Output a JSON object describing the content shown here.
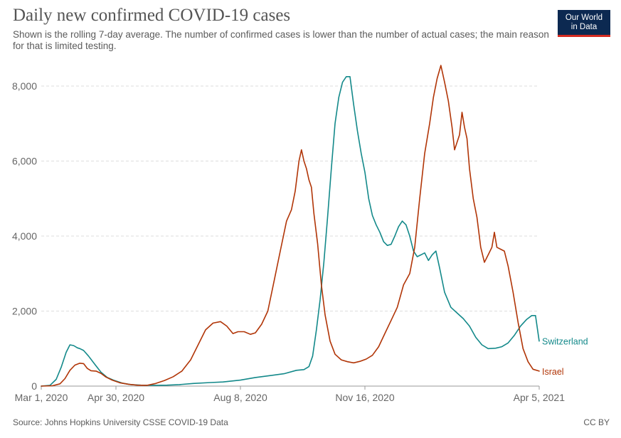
{
  "title": "Daily new confirmed COVID-19 cases",
  "subtitle": "Shown is the rolling 7-day average. The number of confirmed cases is lower than the number of actual cases; the main reason for that is limited testing.",
  "logo": {
    "line1": "Our World",
    "line2": "in Data",
    "bg_color": "#0c2951",
    "accent_color": "#d42b21"
  },
  "source": "Source: Johns Hopkins University CSSE COVID-19 Data",
  "license": "CC BY",
  "chart_data": {
    "type": "line",
    "title": "Daily new confirmed COVID-19 cases",
    "x_axis": {
      "type": "date",
      "range": [
        "2020-03-01",
        "2021-04-05"
      ],
      "tick_labels": [
        {
          "date": "2020-03-01",
          "label": "Mar 1, 2020"
        },
        {
          "date": "2020-04-30",
          "label": "Apr 30, 2020"
        },
        {
          "date": "2020-08-08",
          "label": "Aug 8, 2020"
        },
        {
          "date": "2020-11-16",
          "label": "Nov 16, 2020"
        },
        {
          "date": "2021-04-05",
          "label": "Apr 5, 2021"
        }
      ]
    },
    "y_axis": {
      "range": [
        0,
        8000
      ],
      "ticks": [
        {
          "value": 0,
          "label": "0"
        },
        {
          "value": 2000,
          "label": "2,000"
        },
        {
          "value": 4000,
          "label": "4,000"
        },
        {
          "value": 6000,
          "label": "6,000"
        },
        {
          "value": 8000,
          "label": "8,000"
        }
      ]
    },
    "grid": "horizontal dashed",
    "legend": "labels at line ends, right",
    "series": [
      {
        "name": "Switzerland",
        "color": "#13898a",
        "points": [
          [
            "2020-03-01",
            0
          ],
          [
            "2020-03-08",
            20
          ],
          [
            "2020-03-13",
            180
          ],
          [
            "2020-03-17",
            500
          ],
          [
            "2020-03-21",
            900
          ],
          [
            "2020-03-24",
            1100
          ],
          [
            "2020-03-27",
            1080
          ],
          [
            "2020-03-30",
            1020
          ],
          [
            "2020-04-01",
            1000
          ],
          [
            "2020-04-04",
            950
          ],
          [
            "2020-04-08",
            800
          ],
          [
            "2020-04-13",
            580
          ],
          [
            "2020-04-18",
            370
          ],
          [
            "2020-04-23",
            230
          ],
          [
            "2020-04-28",
            160
          ],
          [
            "2020-05-05",
            80
          ],
          [
            "2020-05-12",
            40
          ],
          [
            "2020-05-20",
            25
          ],
          [
            "2020-06-01",
            20
          ],
          [
            "2020-06-10",
            25
          ],
          [
            "2020-06-20",
            40
          ],
          [
            "2020-07-01",
            70
          ],
          [
            "2020-07-15",
            95
          ],
          [
            "2020-07-25",
            110
          ],
          [
            "2020-08-08",
            160
          ],
          [
            "2020-08-20",
            230
          ],
          [
            "2020-09-01",
            280
          ],
          [
            "2020-09-12",
            330
          ],
          [
            "2020-09-22",
            420
          ],
          [
            "2020-09-28",
            440
          ],
          [
            "2020-10-02",
            520
          ],
          [
            "2020-10-05",
            800
          ],
          [
            "2020-10-08",
            1500
          ],
          [
            "2020-10-11",
            2300
          ],
          [
            "2020-10-14",
            3300
          ],
          [
            "2020-10-17",
            4500
          ],
          [
            "2020-10-20",
            5800
          ],
          [
            "2020-10-23",
            7000
          ],
          [
            "2020-10-26",
            7700
          ],
          [
            "2020-10-29",
            8100
          ],
          [
            "2020-11-01",
            8250
          ],
          [
            "2020-11-04",
            8250
          ],
          [
            "2020-11-07",
            7500
          ],
          [
            "2020-11-10",
            6800
          ],
          [
            "2020-11-13",
            6200
          ],
          [
            "2020-11-16",
            5700
          ],
          [
            "2020-11-19",
            5000
          ],
          [
            "2020-11-22",
            4550
          ],
          [
            "2020-11-25",
            4300
          ],
          [
            "2020-11-28",
            4100
          ],
          [
            "2020-12-01",
            3850
          ],
          [
            "2020-12-04",
            3750
          ],
          [
            "2020-12-07",
            3780
          ],
          [
            "2020-12-10",
            4000
          ],
          [
            "2020-12-13",
            4250
          ],
          [
            "2020-12-16",
            4400
          ],
          [
            "2020-12-19",
            4300
          ],
          [
            "2020-12-22",
            4000
          ],
          [
            "2020-12-25",
            3600
          ],
          [
            "2020-12-28",
            3450
          ],
          [
            "2020-12-31",
            3500
          ],
          [
            "2021-01-03",
            3550
          ],
          [
            "2021-01-06",
            3350
          ],
          [
            "2021-01-09",
            3500
          ],
          [
            "2021-01-12",
            3600
          ],
          [
            "2021-01-15",
            3150
          ],
          [
            "2021-01-19",
            2500
          ],
          [
            "2021-01-24",
            2100
          ],
          [
            "2021-01-29",
            1950
          ],
          [
            "2021-02-03",
            1800
          ],
          [
            "2021-02-08",
            1600
          ],
          [
            "2021-02-13",
            1300
          ],
          [
            "2021-02-18",
            1100
          ],
          [
            "2021-02-23",
            1000
          ],
          [
            "2021-03-01",
            1010
          ],
          [
            "2021-03-06",
            1050
          ],
          [
            "2021-03-11",
            1150
          ],
          [
            "2021-03-16",
            1350
          ],
          [
            "2021-03-21",
            1600
          ],
          [
            "2021-03-26",
            1780
          ],
          [
            "2021-03-30",
            1880
          ],
          [
            "2021-04-02",
            1880
          ],
          [
            "2021-04-05",
            1200
          ]
        ]
      },
      {
        "name": "Israel",
        "color": "#b13507",
        "points": [
          [
            "2020-03-01",
            0
          ],
          [
            "2020-03-10",
            10
          ],
          [
            "2020-03-16",
            60
          ],
          [
            "2020-03-20",
            200
          ],
          [
            "2020-03-24",
            420
          ],
          [
            "2020-03-28",
            560
          ],
          [
            "2020-04-01",
            610
          ],
          [
            "2020-04-04",
            600
          ],
          [
            "2020-04-07",
            470
          ],
          [
            "2020-04-10",
            410
          ],
          [
            "2020-04-14",
            400
          ],
          [
            "2020-04-18",
            340
          ],
          [
            "2020-04-22",
            240
          ],
          [
            "2020-04-27",
            160
          ],
          [
            "2020-05-03",
            90
          ],
          [
            "2020-05-10",
            50
          ],
          [
            "2020-05-17",
            25
          ],
          [
            "2020-05-25",
            20
          ],
          [
            "2020-06-01",
            70
          ],
          [
            "2020-06-08",
            150
          ],
          [
            "2020-06-15",
            250
          ],
          [
            "2020-06-22",
            400
          ],
          [
            "2020-06-29",
            700
          ],
          [
            "2020-07-05",
            1100
          ],
          [
            "2020-07-11",
            1500
          ],
          [
            "2020-07-17",
            1680
          ],
          [
            "2020-07-23",
            1720
          ],
          [
            "2020-07-28",
            1600
          ],
          [
            "2020-08-02",
            1400
          ],
          [
            "2020-08-06",
            1450
          ],
          [
            "2020-08-11",
            1450
          ],
          [
            "2020-08-16",
            1380
          ],
          [
            "2020-08-20",
            1420
          ],
          [
            "2020-08-25",
            1650
          ],
          [
            "2020-08-30",
            2000
          ],
          [
            "2020-09-04",
            2800
          ],
          [
            "2020-09-09",
            3600
          ],
          [
            "2020-09-14",
            4400
          ],
          [
            "2020-09-18",
            4700
          ],
          [
            "2020-09-21",
            5200
          ],
          [
            "2020-09-24",
            6000
          ],
          [
            "2020-09-26",
            6300
          ],
          [
            "2020-09-28",
            6000
          ],
          [
            "2020-09-30",
            5800
          ],
          [
            "2020-10-02",
            5500
          ],
          [
            "2020-10-04",
            5300
          ],
          [
            "2020-10-06",
            4600
          ],
          [
            "2020-10-09",
            3800
          ],
          [
            "2020-10-12",
            2700
          ],
          [
            "2020-10-15",
            1900
          ],
          [
            "2020-10-19",
            1200
          ],
          [
            "2020-10-23",
            850
          ],
          [
            "2020-10-28",
            700
          ],
          [
            "2020-11-02",
            650
          ],
          [
            "2020-11-07",
            620
          ],
          [
            "2020-11-12",
            660
          ],
          [
            "2020-11-17",
            720
          ],
          [
            "2020-11-22",
            820
          ],
          [
            "2020-11-27",
            1050
          ],
          [
            "2020-12-02",
            1400
          ],
          [
            "2020-12-07",
            1750
          ],
          [
            "2020-12-12",
            2100
          ],
          [
            "2020-12-17",
            2700
          ],
          [
            "2020-12-22",
            3000
          ],
          [
            "2020-12-26",
            3700
          ],
          [
            "2020-12-30",
            5000
          ],
          [
            "2021-01-03",
            6200
          ],
          [
            "2021-01-07",
            7000
          ],
          [
            "2021-01-10",
            7700
          ],
          [
            "2021-01-13",
            8200
          ],
          [
            "2021-01-16",
            8550
          ],
          [
            "2021-01-19",
            8100
          ],
          [
            "2021-01-22",
            7600
          ],
          [
            "2021-01-25",
            6900
          ],
          [
            "2021-01-27",
            6300
          ],
          [
            "2021-01-29",
            6500
          ],
          [
            "2021-01-31",
            6700
          ],
          [
            "2021-02-02",
            7300
          ],
          [
            "2021-02-04",
            6900
          ],
          [
            "2021-02-06",
            6600
          ],
          [
            "2021-02-08",
            5800
          ],
          [
            "2021-02-11",
            5000
          ],
          [
            "2021-02-14",
            4500
          ],
          [
            "2021-02-17",
            3700
          ],
          [
            "2021-02-20",
            3300
          ],
          [
            "2021-02-23",
            3500
          ],
          [
            "2021-02-26",
            3700
          ],
          [
            "2021-02-28",
            4100
          ],
          [
            "2021-03-02",
            3700
          ],
          [
            "2021-03-05",
            3650
          ],
          [
            "2021-03-08",
            3600
          ],
          [
            "2021-03-11",
            3200
          ],
          [
            "2021-03-15",
            2500
          ],
          [
            "2021-03-19",
            1700
          ],
          [
            "2021-03-23",
            1000
          ],
          [
            "2021-03-27",
            650
          ],
          [
            "2021-03-31",
            450
          ],
          [
            "2021-04-05",
            400
          ]
        ]
      }
    ]
  }
}
